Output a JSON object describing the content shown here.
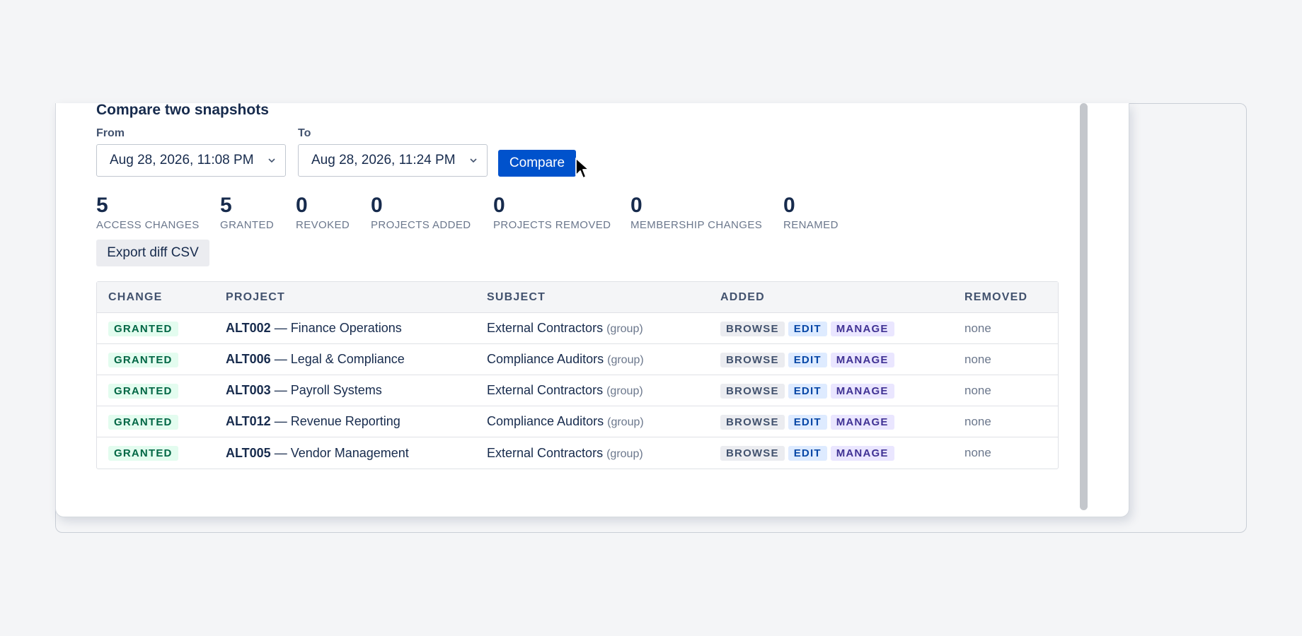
{
  "section_title": "Compare two snapshots",
  "from": {
    "label": "From",
    "value": "Aug 28, 2026, 11:08 PM"
  },
  "to": {
    "label": "To",
    "value": "Aug 28, 2026, 11:24 PM"
  },
  "compare_label": "Compare",
  "stats": [
    {
      "value": "5",
      "label": "ACCESS CHANGES"
    },
    {
      "value": "5",
      "label": "GRANTED"
    },
    {
      "value": "0",
      "label": "REVOKED"
    },
    {
      "value": "0",
      "label": "PROJECTS ADDED"
    },
    {
      "value": "0",
      "label": "PROJECTS REMOVED"
    },
    {
      "value": "0",
      "label": "MEMBERSHIP CHANGES"
    },
    {
      "value": "0",
      "label": "RENAMED"
    }
  ],
  "export_label": "Export diff CSV",
  "table": {
    "headers": {
      "change": "CHANGE",
      "project": "PROJECT",
      "subject": "SUBJECT",
      "added": "ADDED",
      "removed": "REMOVED"
    },
    "rows": [
      {
        "change": "GRANTED",
        "project_id": "ALT002",
        "project_name": " — Finance Operations",
        "subject": "External Contractors",
        "subject_type": "(group)",
        "added": [
          "BROWSE",
          "EDIT",
          "MANAGE"
        ],
        "removed": "none"
      },
      {
        "change": "GRANTED",
        "project_id": "ALT006",
        "project_name": " — Legal & Compliance",
        "subject": "Compliance Auditors",
        "subject_type": "(group)",
        "added": [
          "BROWSE",
          "EDIT",
          "MANAGE"
        ],
        "removed": "none"
      },
      {
        "change": "GRANTED",
        "project_id": "ALT003",
        "project_name": " — Payroll Systems",
        "subject": "External Contractors",
        "subject_type": "(group)",
        "added": [
          "BROWSE",
          "EDIT",
          "MANAGE"
        ],
        "removed": "none"
      },
      {
        "change": "GRANTED",
        "project_id": "ALT012",
        "project_name": " — Revenue Reporting",
        "subject": "Compliance Auditors",
        "subject_type": "(group)",
        "added": [
          "BROWSE",
          "EDIT",
          "MANAGE"
        ],
        "removed": "none"
      },
      {
        "change": "GRANTED",
        "project_id": "ALT005",
        "project_name": " — Vendor Management",
        "subject": "External Contractors",
        "subject_type": "(group)",
        "added": [
          "BROWSE",
          "EDIT",
          "MANAGE"
        ],
        "removed": "none"
      }
    ]
  },
  "colors": {
    "primary": "#0052cc",
    "granted_bg": "#e3fcef",
    "granted_text": "#006644",
    "edit_bg": "#deebff",
    "manage_bg": "#eae6ff"
  },
  "icons": {
    "select_chevron": "chevron-down-icon",
    "cursor": "mouse-pointer-icon"
  }
}
